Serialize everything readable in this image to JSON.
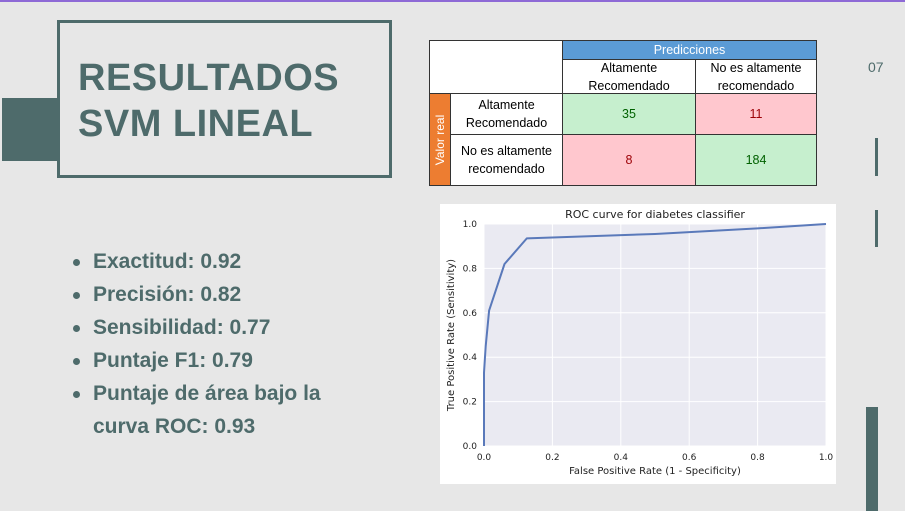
{
  "slide": {
    "title_line1": "RESULTADOS",
    "title_line2": "SVM LINEAL",
    "page_number": "07"
  },
  "metrics": [
    "Exactitud: 0.92",
    "Precisión:  0.82",
    "Sensibilidad: 0.77",
    "Puntaje F1: 0.79",
    "Puntaje de área bajo la curva ROC: 0.93"
  ],
  "confusion_matrix": {
    "predictions_header": "Predicciones",
    "actual_header": "Valor real",
    "col_labels": [
      "Altamente Recomendado",
      "No es altamente recomendado"
    ],
    "row_labels": [
      "Altamente Recomendado",
      "No es altamente recomendado"
    ],
    "values": [
      [
        35,
        11
      ],
      [
        8,
        184
      ]
    ]
  },
  "colors": {
    "accent": "#4e6b6b",
    "good": "#c6efce",
    "bad": "#ffc7ce",
    "header_blue": "#5b9bd5",
    "header_orange": "#ed7d31",
    "line": "#5a79ba"
  },
  "chart_data": {
    "type": "line",
    "title": "ROC curve for diabetes classifier",
    "xlabel": "False Positive Rate (1 - Specificity)",
    "ylabel": "True Positive Rate (Sensitivity)",
    "xlim": [
      0.0,
      1.0
    ],
    "ylim": [
      0.0,
      1.0
    ],
    "xticks": [
      "0.0",
      "0.2",
      "0.4",
      "0.6",
      "0.8",
      "1.0"
    ],
    "yticks": [
      "0.0",
      "0.2",
      "0.4",
      "0.6",
      "0.8",
      "1.0"
    ],
    "grid": true,
    "series": [
      {
        "name": "ROC",
        "x": [
          0.0,
          0.0,
          0.005,
          0.015,
          0.06,
          0.125,
          0.5,
          0.8,
          1.0
        ],
        "y": [
          0.0,
          0.33,
          0.45,
          0.61,
          0.82,
          0.935,
          0.955,
          0.98,
          1.0
        ]
      }
    ]
  }
}
